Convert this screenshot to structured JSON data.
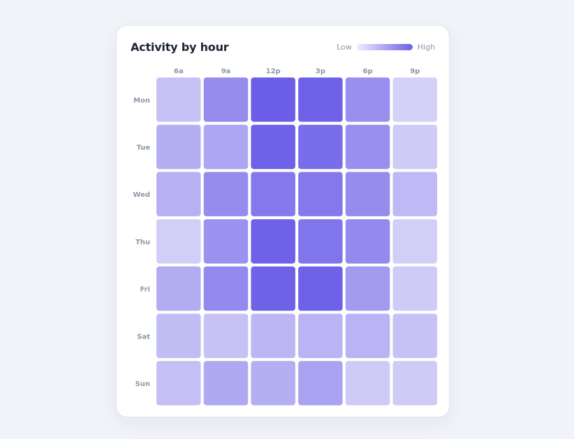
{
  "card": {
    "title": "Activity by hour",
    "legend": {
      "low_label": "Low",
      "high_label": "High",
      "low_color": "#eeedfc",
      "high_color": "#6b5fe8"
    }
  },
  "chart_data": {
    "type": "heatmap",
    "title": "Activity by hour",
    "x_labels": [
      "6a",
      "9a",
      "12p",
      "3p",
      "6p",
      "9p"
    ],
    "y_labels": [
      "Mon",
      "Tue",
      "Wed",
      "Thu",
      "Fri",
      "Sat",
      "Sun"
    ],
    "values": [
      [
        0.3,
        0.68,
        1.0,
        0.98,
        0.66,
        0.2
      ],
      [
        0.44,
        0.5,
        0.98,
        0.9,
        0.66,
        0.24
      ],
      [
        0.42,
        0.68,
        0.82,
        0.82,
        0.68,
        0.36
      ],
      [
        0.22,
        0.64,
        0.98,
        0.84,
        0.7,
        0.22
      ],
      [
        0.46,
        0.7,
        0.98,
        0.98,
        0.58,
        0.24
      ],
      [
        0.34,
        0.3,
        0.38,
        0.4,
        0.4,
        0.3
      ],
      [
        0.32,
        0.48,
        0.44,
        0.52,
        0.24,
        0.24
      ]
    ],
    "value_range": [
      0,
      1
    ],
    "legend_position": "top-right",
    "grid": false
  }
}
